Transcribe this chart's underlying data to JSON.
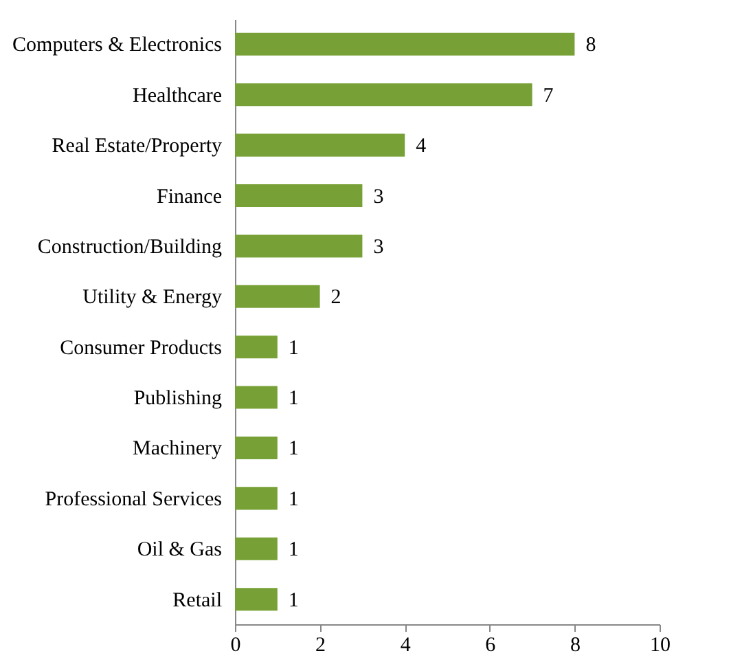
{
  "chart_data": {
    "type": "bar",
    "orientation": "horizontal",
    "categories": [
      "Computers & Electronics",
      "Healthcare",
      "Real Estate/Property",
      "Finance",
      "Construction/Building",
      "Utility & Energy",
      "Consumer Products",
      "Publishing",
      "Machinery",
      "Professional Services",
      "Oil & Gas",
      "Retail"
    ],
    "values": [
      8,
      7,
      4,
      3,
      3,
      2,
      1,
      1,
      1,
      1,
      1,
      1
    ],
    "color": "#77a136",
    "xlim": [
      0,
      10
    ],
    "xticks": [
      0,
      2,
      4,
      6,
      8,
      10
    ],
    "data_labels": true
  }
}
